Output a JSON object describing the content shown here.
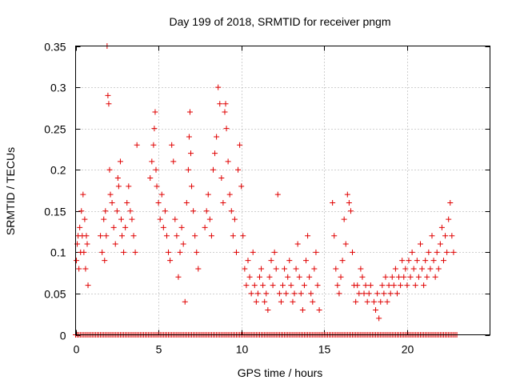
{
  "chart_data": {
    "type": "scatter",
    "title": "Day 199 of 2018, SRMTID for receiver pngm",
    "xlabel": "GPS time / hours",
    "ylabel": "SRMTID / TECUs",
    "xlim": [
      0,
      25
    ],
    "ylim": [
      0,
      0.35
    ],
    "xticks": [
      0,
      5,
      10,
      15,
      20
    ],
    "xtick_labels": [
      "0",
      "5",
      "10",
      "15",
      "20"
    ],
    "yticks": [
      0,
      0.05,
      0.1,
      0.15,
      0.2,
      0.25,
      0.3,
      0.35
    ],
    "ytick_labels": [
      "0",
      "0.05",
      "0.1",
      "0.15",
      "0.2",
      "0.25",
      "0.3",
      "0.35"
    ],
    "grid": true,
    "marker": "+",
    "marker_color": "#e00000",
    "series": [
      {
        "name": "SRMTID",
        "points": [
          [
            0.05,
            0.09
          ],
          [
            0.1,
            0.11
          ],
          [
            0.15,
            0.12
          ],
          [
            0.2,
            0.08
          ],
          [
            0.25,
            0.13
          ],
          [
            0.3,
            0.1
          ],
          [
            0.35,
            0.15
          ],
          [
            0.4,
            0.12
          ],
          [
            0.45,
            0.17
          ],
          [
            0.5,
            0.1
          ],
          [
            0.55,
            0.14
          ],
          [
            0.6,
            0.08
          ],
          [
            0.65,
            0.12
          ],
          [
            0.7,
            0.11
          ],
          [
            0.75,
            0.06
          ],
          [
            1.5,
            0.12
          ],
          [
            1.6,
            0.1
          ],
          [
            1.7,
            0.14
          ],
          [
            1.75,
            0.09
          ],
          [
            1.8,
            0.15
          ],
          [
            1.85,
            0.12
          ],
          [
            1.9,
            0.35
          ],
          [
            1.95,
            0.29
          ],
          [
            2.0,
            0.28
          ],
          [
            2.05,
            0.2
          ],
          [
            2.1,
            0.17
          ],
          [
            2.2,
            0.16
          ],
          [
            2.3,
            0.13
          ],
          [
            2.4,
            0.11
          ],
          [
            2.5,
            0.15
          ],
          [
            2.55,
            0.19
          ],
          [
            2.6,
            0.18
          ],
          [
            2.7,
            0.21
          ],
          [
            2.75,
            0.14
          ],
          [
            2.8,
            0.12
          ],
          [
            2.9,
            0.1
          ],
          [
            3.0,
            0.13
          ],
          [
            3.1,
            0.16
          ],
          [
            3.2,
            0.18
          ],
          [
            3.3,
            0.15
          ],
          [
            3.4,
            0.14
          ],
          [
            3.5,
            0.12
          ],
          [
            3.6,
            0.1
          ],
          [
            3.7,
            0.23
          ],
          [
            4.5,
            0.19
          ],
          [
            4.6,
            0.21
          ],
          [
            4.7,
            0.23
          ],
          [
            4.75,
            0.25
          ],
          [
            4.8,
            0.27
          ],
          [
            4.85,
            0.2
          ],
          [
            4.9,
            0.18
          ],
          [
            5.0,
            0.16
          ],
          [
            5.1,
            0.14
          ],
          [
            5.2,
            0.17
          ],
          [
            5.3,
            0.13
          ],
          [
            5.4,
            0.15
          ],
          [
            5.5,
            0.12
          ],
          [
            5.6,
            0.1
          ],
          [
            5.7,
            0.09
          ],
          [
            5.8,
            0.23
          ],
          [
            5.9,
            0.21
          ],
          [
            6.0,
            0.14
          ],
          [
            6.1,
            0.12
          ],
          [
            6.2,
            0.07
          ],
          [
            6.3,
            0.1
          ],
          [
            6.4,
            0.13
          ],
          [
            6.5,
            0.11
          ],
          [
            6.6,
            0.04
          ],
          [
            6.7,
            0.16
          ],
          [
            6.8,
            0.2
          ],
          [
            6.85,
            0.24
          ],
          [
            6.9,
            0.27
          ],
          [
            6.95,
            0.22
          ],
          [
            7.0,
            0.18
          ],
          [
            7.1,
            0.15
          ],
          [
            7.2,
            0.12
          ],
          [
            7.3,
            0.1
          ],
          [
            7.4,
            0.08
          ],
          [
            7.8,
            0.13
          ],
          [
            7.9,
            0.15
          ],
          [
            8.0,
            0.17
          ],
          [
            8.1,
            0.14
          ],
          [
            8.2,
            0.12
          ],
          [
            8.3,
            0.2
          ],
          [
            8.4,
            0.22
          ],
          [
            8.5,
            0.24
          ],
          [
            8.6,
            0.3
          ],
          [
            8.7,
            0.28
          ],
          [
            8.8,
            0.19
          ],
          [
            8.9,
            0.16
          ],
          [
            9.0,
            0.27
          ],
          [
            9.05,
            0.28
          ],
          [
            9.1,
            0.25
          ],
          [
            9.2,
            0.21
          ],
          [
            9.3,
            0.17
          ],
          [
            9.4,
            0.15
          ],
          [
            9.5,
            0.12
          ],
          [
            9.6,
            0.14
          ],
          [
            9.7,
            0.1
          ],
          [
            9.8,
            0.2
          ],
          [
            9.9,
            0.23
          ],
          [
            10.0,
            0.18
          ],
          [
            10.1,
            0.12
          ],
          [
            10.2,
            0.08
          ],
          [
            10.3,
            0.06
          ],
          [
            10.4,
            0.09
          ],
          [
            10.5,
            0.07
          ],
          [
            10.6,
            0.05
          ],
          [
            10.7,
            0.1
          ],
          [
            10.8,
            0.06
          ],
          [
            10.9,
            0.04
          ],
          [
            11.0,
            0.05
          ],
          [
            11.1,
            0.07
          ],
          [
            11.2,
            0.08
          ],
          [
            11.3,
            0.06
          ],
          [
            11.4,
            0.04
          ],
          [
            11.5,
            0.05
          ],
          [
            11.6,
            0.03
          ],
          [
            11.7,
            0.07
          ],
          [
            11.8,
            0.09
          ],
          [
            11.9,
            0.06
          ],
          [
            12.0,
            0.1
          ],
          [
            12.1,
            0.08
          ],
          [
            12.2,
            0.17
          ],
          [
            12.3,
            0.05
          ],
          [
            12.4,
            0.04
          ],
          [
            12.5,
            0.06
          ],
          [
            12.6,
            0.08
          ],
          [
            12.7,
            0.05
          ],
          [
            12.8,
            0.07
          ],
          [
            12.9,
            0.09
          ],
          [
            13.0,
            0.06
          ],
          [
            13.1,
            0.04
          ],
          [
            13.2,
            0.05
          ],
          [
            13.3,
            0.08
          ],
          [
            13.4,
            0.11
          ],
          [
            13.5,
            0.07
          ],
          [
            13.6,
            0.05
          ],
          [
            13.7,
            0.03
          ],
          [
            13.8,
            0.06
          ],
          [
            13.9,
            0.09
          ],
          [
            14.0,
            0.12
          ],
          [
            14.1,
            0.07
          ],
          [
            14.2,
            0.05
          ],
          [
            14.3,
            0.04
          ],
          [
            14.4,
            0.08
          ],
          [
            14.5,
            0.1
          ],
          [
            14.6,
            0.06
          ],
          [
            14.7,
            0.03
          ],
          [
            15.5,
            0.16
          ],
          [
            15.6,
            0.12
          ],
          [
            15.7,
            0.08
          ],
          [
            15.8,
            0.06
          ],
          [
            15.9,
            0.05
          ],
          [
            16.0,
            0.07
          ],
          [
            16.1,
            0.09
          ],
          [
            16.2,
            0.14
          ],
          [
            16.3,
            0.11
          ],
          [
            16.4,
            0.17
          ],
          [
            16.5,
            0.16
          ],
          [
            16.6,
            0.15
          ],
          [
            16.7,
            0.1
          ],
          [
            16.8,
            0.06
          ],
          [
            16.9,
            0.04
          ],
          [
            17.0,
            0.06
          ],
          [
            17.1,
            0.05
          ],
          [
            17.2,
            0.08
          ],
          [
            17.3,
            0.07
          ],
          [
            17.4,
            0.05
          ],
          [
            17.5,
            0.06
          ],
          [
            17.6,
            0.04
          ],
          [
            17.7,
            0.05
          ],
          [
            17.8,
            0.06
          ],
          [
            18.0,
            0.04
          ],
          [
            18.1,
            0.03
          ],
          [
            18.2,
            0.05
          ],
          [
            18.3,
            0.02
          ],
          [
            18.4,
            0.04
          ],
          [
            18.5,
            0.06
          ],
          [
            18.6,
            0.05
          ],
          [
            18.7,
            0.07
          ],
          [
            18.8,
            0.04
          ],
          [
            18.9,
            0.06
          ],
          [
            19.0,
            0.05
          ],
          [
            19.1,
            0.07
          ],
          [
            19.2,
            0.06
          ],
          [
            19.3,
            0.08
          ],
          [
            19.4,
            0.05
          ],
          [
            19.5,
            0.07
          ],
          [
            19.6,
            0.06
          ],
          [
            19.7,
            0.09
          ],
          [
            19.8,
            0.07
          ],
          [
            19.9,
            0.08
          ],
          [
            20.0,
            0.06
          ],
          [
            20.1,
            0.09
          ],
          [
            20.2,
            0.07
          ],
          [
            20.3,
            0.1
          ],
          [
            20.4,
            0.08
          ],
          [
            20.5,
            0.06
          ],
          [
            20.6,
            0.09
          ],
          [
            20.7,
            0.07
          ],
          [
            20.8,
            0.11
          ],
          [
            20.9,
            0.08
          ],
          [
            21.0,
            0.06
          ],
          [
            21.1,
            0.09
          ],
          [
            21.2,
            0.07
          ],
          [
            21.3,
            0.1
          ],
          [
            21.4,
            0.08
          ],
          [
            21.5,
            0.12
          ],
          [
            21.6,
            0.09
          ],
          [
            21.7,
            0.07
          ],
          [
            21.8,
            0.1
          ],
          [
            21.9,
            0.08
          ],
          [
            22.0,
            0.11
          ],
          [
            22.1,
            0.13
          ],
          [
            22.2,
            0.09
          ],
          [
            22.3,
            0.12
          ],
          [
            22.4,
            0.1
          ],
          [
            22.5,
            0.14
          ],
          [
            22.6,
            0.16
          ],
          [
            22.7,
            0.12
          ],
          [
            22.8,
            0.1
          ]
        ]
      },
      {
        "name": "zero-values",
        "x_from": 0,
        "x_to": 23,
        "x_step": 0.1,
        "y": 0
      }
    ]
  }
}
